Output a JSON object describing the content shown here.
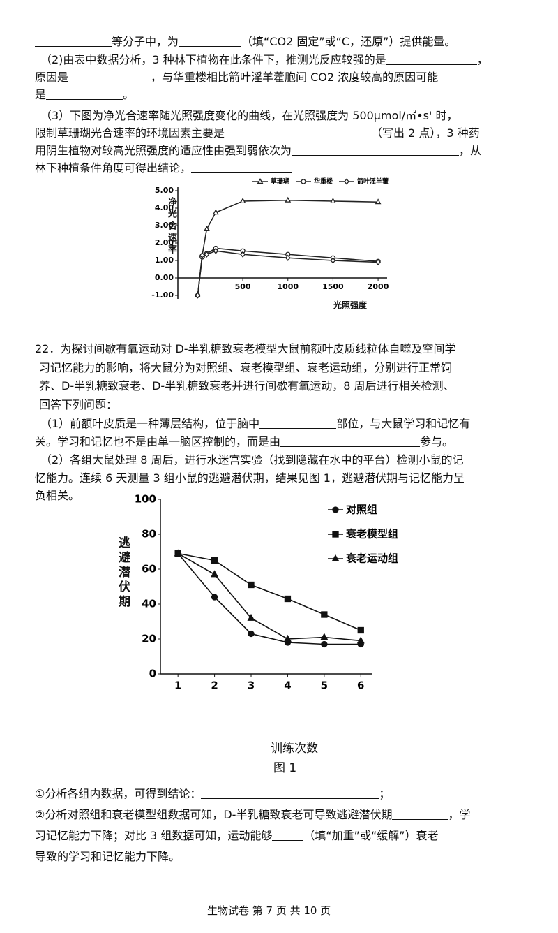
{
  "lines": [
    [
      "等分子中，为",
      "（填“CO2 固定”或“C，还原”）提供能量。"
    ],
    [
      "（2)由表中数据分析，3 种林下植物在此条件下，推测光反应较强的是",
      "，"
    ],
    [
      "原因是",
      "，与华重楼相比箭叶淫羊藿胞间 CO2 浓度较高的原因可能"
    ],
    [
      "是",
      "。"
    ],
    [
      "（3）下图为净光合速率随光照强度变化的曲线，在光照强度为 500μmol/㎡•s' 时，"
    ],
    [
      "限制草珊瑚光合速率的环境因素主要是",
      "（写出 2 点），3 种药"
    ],
    [
      "用阴生植物对较高光照强度的适应性由强到弱依次为",
      "，从"
    ],
    [
      "林下种植条件角度可得出结论，"
    ],
    [
      "22．为探讨间歇有氧运动对 D-半乳糖致衰老模型大鼠前额叶皮质线粒体自噬及空间学"
    ],
    [
      "习记忆能力的影响，将大鼠分为对照组、衰老模型组、衰老运动组，分别进行正常饲"
    ],
    [
      "养、D-半乳糖致衰老、D-半乳糖致衰老并进行间歇有氧运动，8 周后进行相关检测、"
    ],
    [
      "回答下列问题："
    ],
    [
      "（1）前额叶皮质是一种薄层结构，位于脑中",
      "部位，与大鼠学习和记忆有"
    ],
    [
      "关。学习和记忆也不是由单一脑区控制的，而是由",
      "参与。"
    ],
    [
      "（2）各组大鼠处理 8 周后，进行水迷宫实验（找到隐藏在水中的平台）检测小鼠的记"
    ],
    [
      "忆能力。连续 6 天测量 3 组小鼠的逃避潜伏期，结果见图 1，逃避潜伏期与记忆能力呈"
    ],
    [
      "负相关。"
    ],
    [
      "①分析各组内数据，可得到结论：",
      "；"
    ],
    [
      "②分析对照组和衰老模型组数据可知，D-半乳糖致衰老可导致逃避潜伏期",
      "，学"
    ],
    [
      "习记忆能力下降；对比 3 组数据可知，运动能够",
      "（填“加重”或“缓解”）衰老"
    ],
    [
      "导致的学习和记忆能力下降。"
    ]
  ],
  "footer": "生物试卷 第 7 页 共 10 页",
  "chart_data": [
    {
      "type": "line",
      "ylabel": "净光合速率",
      "xlabel": "光照强度",
      "x": [
        0,
        50,
        100,
        200,
        500,
        1000,
        1500,
        2000
      ],
      "xlim": [
        -220,
        2100
      ],
      "xticks": [
        500,
        1000,
        1500,
        2000
      ],
      "ylim": [
        -1.2,
        5.2
      ],
      "yticks": [
        {
          "value": -1,
          "label": "-1.00"
        },
        {
          "value": 0,
          "label": "0.00"
        },
        {
          "value": 1,
          "label": "1.00"
        },
        {
          "value": 2,
          "label": "2.00"
        },
        {
          "value": 3,
          "label": "3.00"
        },
        {
          "value": 4,
          "label": "4.00"
        },
        {
          "value": 5,
          "label": "5.00"
        }
      ],
      "series": [
        {
          "name": "草珊瑚",
          "marker": "triangle-open",
          "color": "#222222",
          "values": [
            -1.0,
            1.3,
            2.8,
            3.75,
            4.4,
            4.45,
            4.4,
            4.35
          ]
        },
        {
          "name": "华重楼",
          "marker": "circle-open",
          "color": "#222222",
          "values": [
            -1.0,
            1.2,
            1.4,
            1.7,
            1.55,
            1.35,
            1.15,
            0.95
          ]
        },
        {
          "name": "箭叶淫羊藿",
          "marker": "diamond-open",
          "color": "#222222",
          "values": [
            -1.0,
            1.3,
            1.35,
            1.55,
            1.35,
            1.15,
            1.0,
            0.9
          ]
        }
      ]
    },
    {
      "type": "line",
      "ylabel": "逃避潜伏期",
      "xlabel": "训练次数",
      "caption": "图 1",
      "x": [
        1,
        2,
        3,
        4,
        5,
        6
      ],
      "xlim": [
        0.52,
        6.3
      ],
      "xticks": [
        1,
        2,
        3,
        4,
        5,
        6
      ],
      "ylim": [
        0,
        100
      ],
      "yticks": [
        0,
        20,
        40,
        60,
        80,
        100
      ],
      "series": [
        {
          "name": "对照组",
          "marker": "circle",
          "color": "#111111",
          "values": [
            69,
            44,
            23,
            18,
            17,
            17
          ]
        },
        {
          "name": "衰老模型组",
          "marker": "square",
          "color": "#111111",
          "values": [
            69,
            65,
            51,
            43,
            34,
            25
          ]
        },
        {
          "name": "衰老运动组",
          "marker": "triangle",
          "color": "#111111",
          "values": [
            69,
            57,
            32,
            20,
            21,
            19
          ]
        }
      ]
    }
  ]
}
